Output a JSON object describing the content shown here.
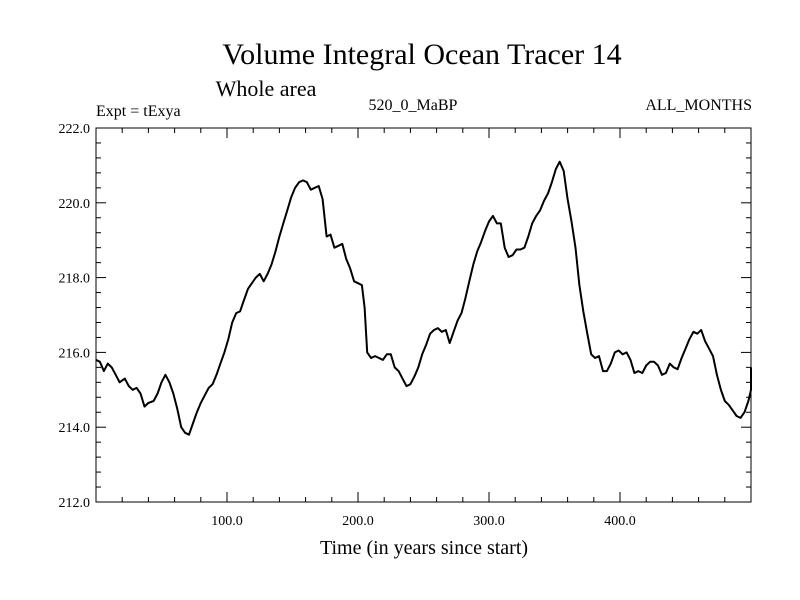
{
  "chart_data": {
    "type": "line",
    "title": "Volume Integral Ocean Tracer 14",
    "subtitle": "Whole area",
    "header_left": "Expt = tExya",
    "header_center": "520_0_MaBP",
    "header_right": "ALL_MONTHS",
    "xlabel": "Time (in years since start)",
    "ylabel": "",
    "xlim": [
      0,
      500
    ],
    "ylim": [
      212,
      222
    ],
    "x_ticks": [
      100,
      200,
      300,
      400
    ],
    "x_tick_labels": [
      "100.0",
      "200.0",
      "300.0",
      "400.0"
    ],
    "y_ticks": [
      212,
      214,
      216,
      218,
      220,
      222
    ],
    "y_tick_labels": [
      "212.0",
      "214.0",
      "216.0",
      "218.0",
      "220.0",
      "222.0"
    ],
    "grid": false,
    "series": [
      {
        "color": "#000000",
        "points": [
          [
            0,
            215.8
          ],
          [
            3,
            215.75
          ],
          [
            6,
            215.5
          ],
          [
            9,
            215.7
          ],
          [
            12,
            215.6
          ],
          [
            15,
            215.4
          ],
          [
            18,
            215.2
          ],
          [
            22,
            215.3
          ],
          [
            25,
            215.1
          ],
          [
            28,
            215.0
          ],
          [
            31,
            215.05
          ],
          [
            34,
            214.9
          ],
          [
            37,
            214.55
          ],
          [
            40,
            214.65
          ],
          [
            44,
            214.7
          ],
          [
            47,
            214.9
          ],
          [
            50,
            215.2
          ],
          [
            53,
            215.4
          ],
          [
            56,
            215.2
          ],
          [
            59,
            214.9
          ],
          [
            62,
            214.5
          ],
          [
            65,
            214.0
          ],
          [
            68,
            213.85
          ],
          [
            71,
            213.8
          ],
          [
            74,
            214.1
          ],
          [
            77,
            214.4
          ],
          [
            80,
            214.65
          ],
          [
            83,
            214.85
          ],
          [
            86,
            215.05
          ],
          [
            89,
            215.15
          ],
          [
            92,
            215.4
          ],
          [
            95,
            215.7
          ],
          [
            98,
            216.0
          ],
          [
            101,
            216.35
          ],
          [
            104,
            216.8
          ],
          [
            107,
            217.05
          ],
          [
            110,
            217.1
          ],
          [
            113,
            217.4
          ],
          [
            116,
            217.7
          ],
          [
            119,
            217.85
          ],
          [
            122,
            218.0
          ],
          [
            125,
            218.1
          ],
          [
            128,
            217.9
          ],
          [
            131,
            218.1
          ],
          [
            134,
            218.35
          ],
          [
            137,
            218.7
          ],
          [
            140,
            219.1
          ],
          [
            143,
            219.45
          ],
          [
            146,
            219.8
          ],
          [
            149,
            220.15
          ],
          [
            152,
            220.4
          ],
          [
            155,
            220.55
          ],
          [
            158,
            220.6
          ],
          [
            161,
            220.55
          ],
          [
            164,
            220.35
          ],
          [
            167,
            220.4
          ],
          [
            170,
            220.45
          ],
          [
            173,
            220.1
          ],
          [
            176,
            219.1
          ],
          [
            179,
            219.15
          ],
          [
            182,
            218.8
          ],
          [
            185,
            218.85
          ],
          [
            188,
            218.9
          ],
          [
            191,
            218.5
          ],
          [
            194,
            218.25
          ],
          [
            197,
            217.9
          ],
          [
            200,
            217.85
          ],
          [
            203,
            217.8
          ],
          [
            205,
            217.2
          ],
          [
            207,
            216.0
          ],
          [
            210,
            215.85
          ],
          [
            213,
            215.9
          ],
          [
            216,
            215.85
          ],
          [
            219,
            215.8
          ],
          [
            222,
            215.95
          ],
          [
            225,
            215.95
          ],
          [
            228,
            215.6
          ],
          [
            231,
            215.5
          ],
          [
            234,
            215.3
          ],
          [
            237,
            215.1
          ],
          [
            240,
            215.15
          ],
          [
            243,
            215.35
          ],
          [
            246,
            215.6
          ],
          [
            249,
            215.95
          ],
          [
            252,
            216.2
          ],
          [
            255,
            216.5
          ],
          [
            258,
            216.6
          ],
          [
            261,
            216.65
          ],
          [
            264,
            216.55
          ],
          [
            267,
            216.6
          ],
          [
            270,
            216.25
          ],
          [
            273,
            216.55
          ],
          [
            276,
            216.85
          ],
          [
            279,
            217.05
          ],
          [
            282,
            217.45
          ],
          [
            285,
            217.9
          ],
          [
            288,
            218.35
          ],
          [
            291,
            218.7
          ],
          [
            294,
            218.95
          ],
          [
            297,
            219.25
          ],
          [
            300,
            219.5
          ],
          [
            303,
            219.65
          ],
          [
            306,
            219.45
          ],
          [
            309,
            219.45
          ],
          [
            312,
            218.8
          ],
          [
            315,
            218.55
          ],
          [
            318,
            218.6
          ],
          [
            321,
            218.75
          ],
          [
            324,
            218.75
          ],
          [
            327,
            218.8
          ],
          [
            330,
            219.1
          ],
          [
            333,
            219.45
          ],
          [
            336,
            219.65
          ],
          [
            339,
            219.8
          ],
          [
            342,
            220.05
          ],
          [
            345,
            220.25
          ],
          [
            348,
            220.55
          ],
          [
            351,
            220.9
          ],
          [
            354,
            221.1
          ],
          [
            357,
            220.85
          ],
          [
            360,
            220.1
          ],
          [
            363,
            219.5
          ],
          [
            366,
            218.8
          ],
          [
            369,
            217.8
          ],
          [
            372,
            217.1
          ],
          [
            375,
            216.5
          ],
          [
            378,
            215.95
          ],
          [
            381,
            215.85
          ],
          [
            384,
            215.9
          ],
          [
            387,
            215.5
          ],
          [
            390,
            215.5
          ],
          [
            393,
            215.7
          ],
          [
            396,
            216.0
          ],
          [
            399,
            216.05
          ],
          [
            402,
            215.95
          ],
          [
            405,
            216.0
          ],
          [
            408,
            215.8
          ],
          [
            411,
            215.45
          ],
          [
            414,
            215.5
          ],
          [
            417,
            215.45
          ],
          [
            420,
            215.65
          ],
          [
            423,
            215.75
          ],
          [
            426,
            215.75
          ],
          [
            429,
            215.65
          ],
          [
            432,
            215.4
          ],
          [
            435,
            215.45
          ],
          [
            438,
            215.7
          ],
          [
            441,
            215.6
          ],
          [
            444,
            215.55
          ],
          [
            447,
            215.85
          ],
          [
            450,
            216.1
          ],
          [
            453,
            216.35
          ],
          [
            456,
            216.55
          ],
          [
            459,
            216.5
          ],
          [
            462,
            216.6
          ],
          [
            465,
            216.3
          ],
          [
            468,
            216.1
          ],
          [
            471,
            215.9
          ],
          [
            474,
            215.4
          ],
          [
            477,
            215.0
          ],
          [
            480,
            214.7
          ],
          [
            483,
            214.6
          ],
          [
            486,
            214.45
          ],
          [
            489,
            214.3
          ],
          [
            492,
            214.25
          ],
          [
            495,
            214.4
          ],
          [
            498,
            214.7
          ],
          [
            501,
            215.0
          ],
          [
            504,
            215.3
          ],
          [
            507,
            215.6
          ]
        ]
      }
    ]
  }
}
